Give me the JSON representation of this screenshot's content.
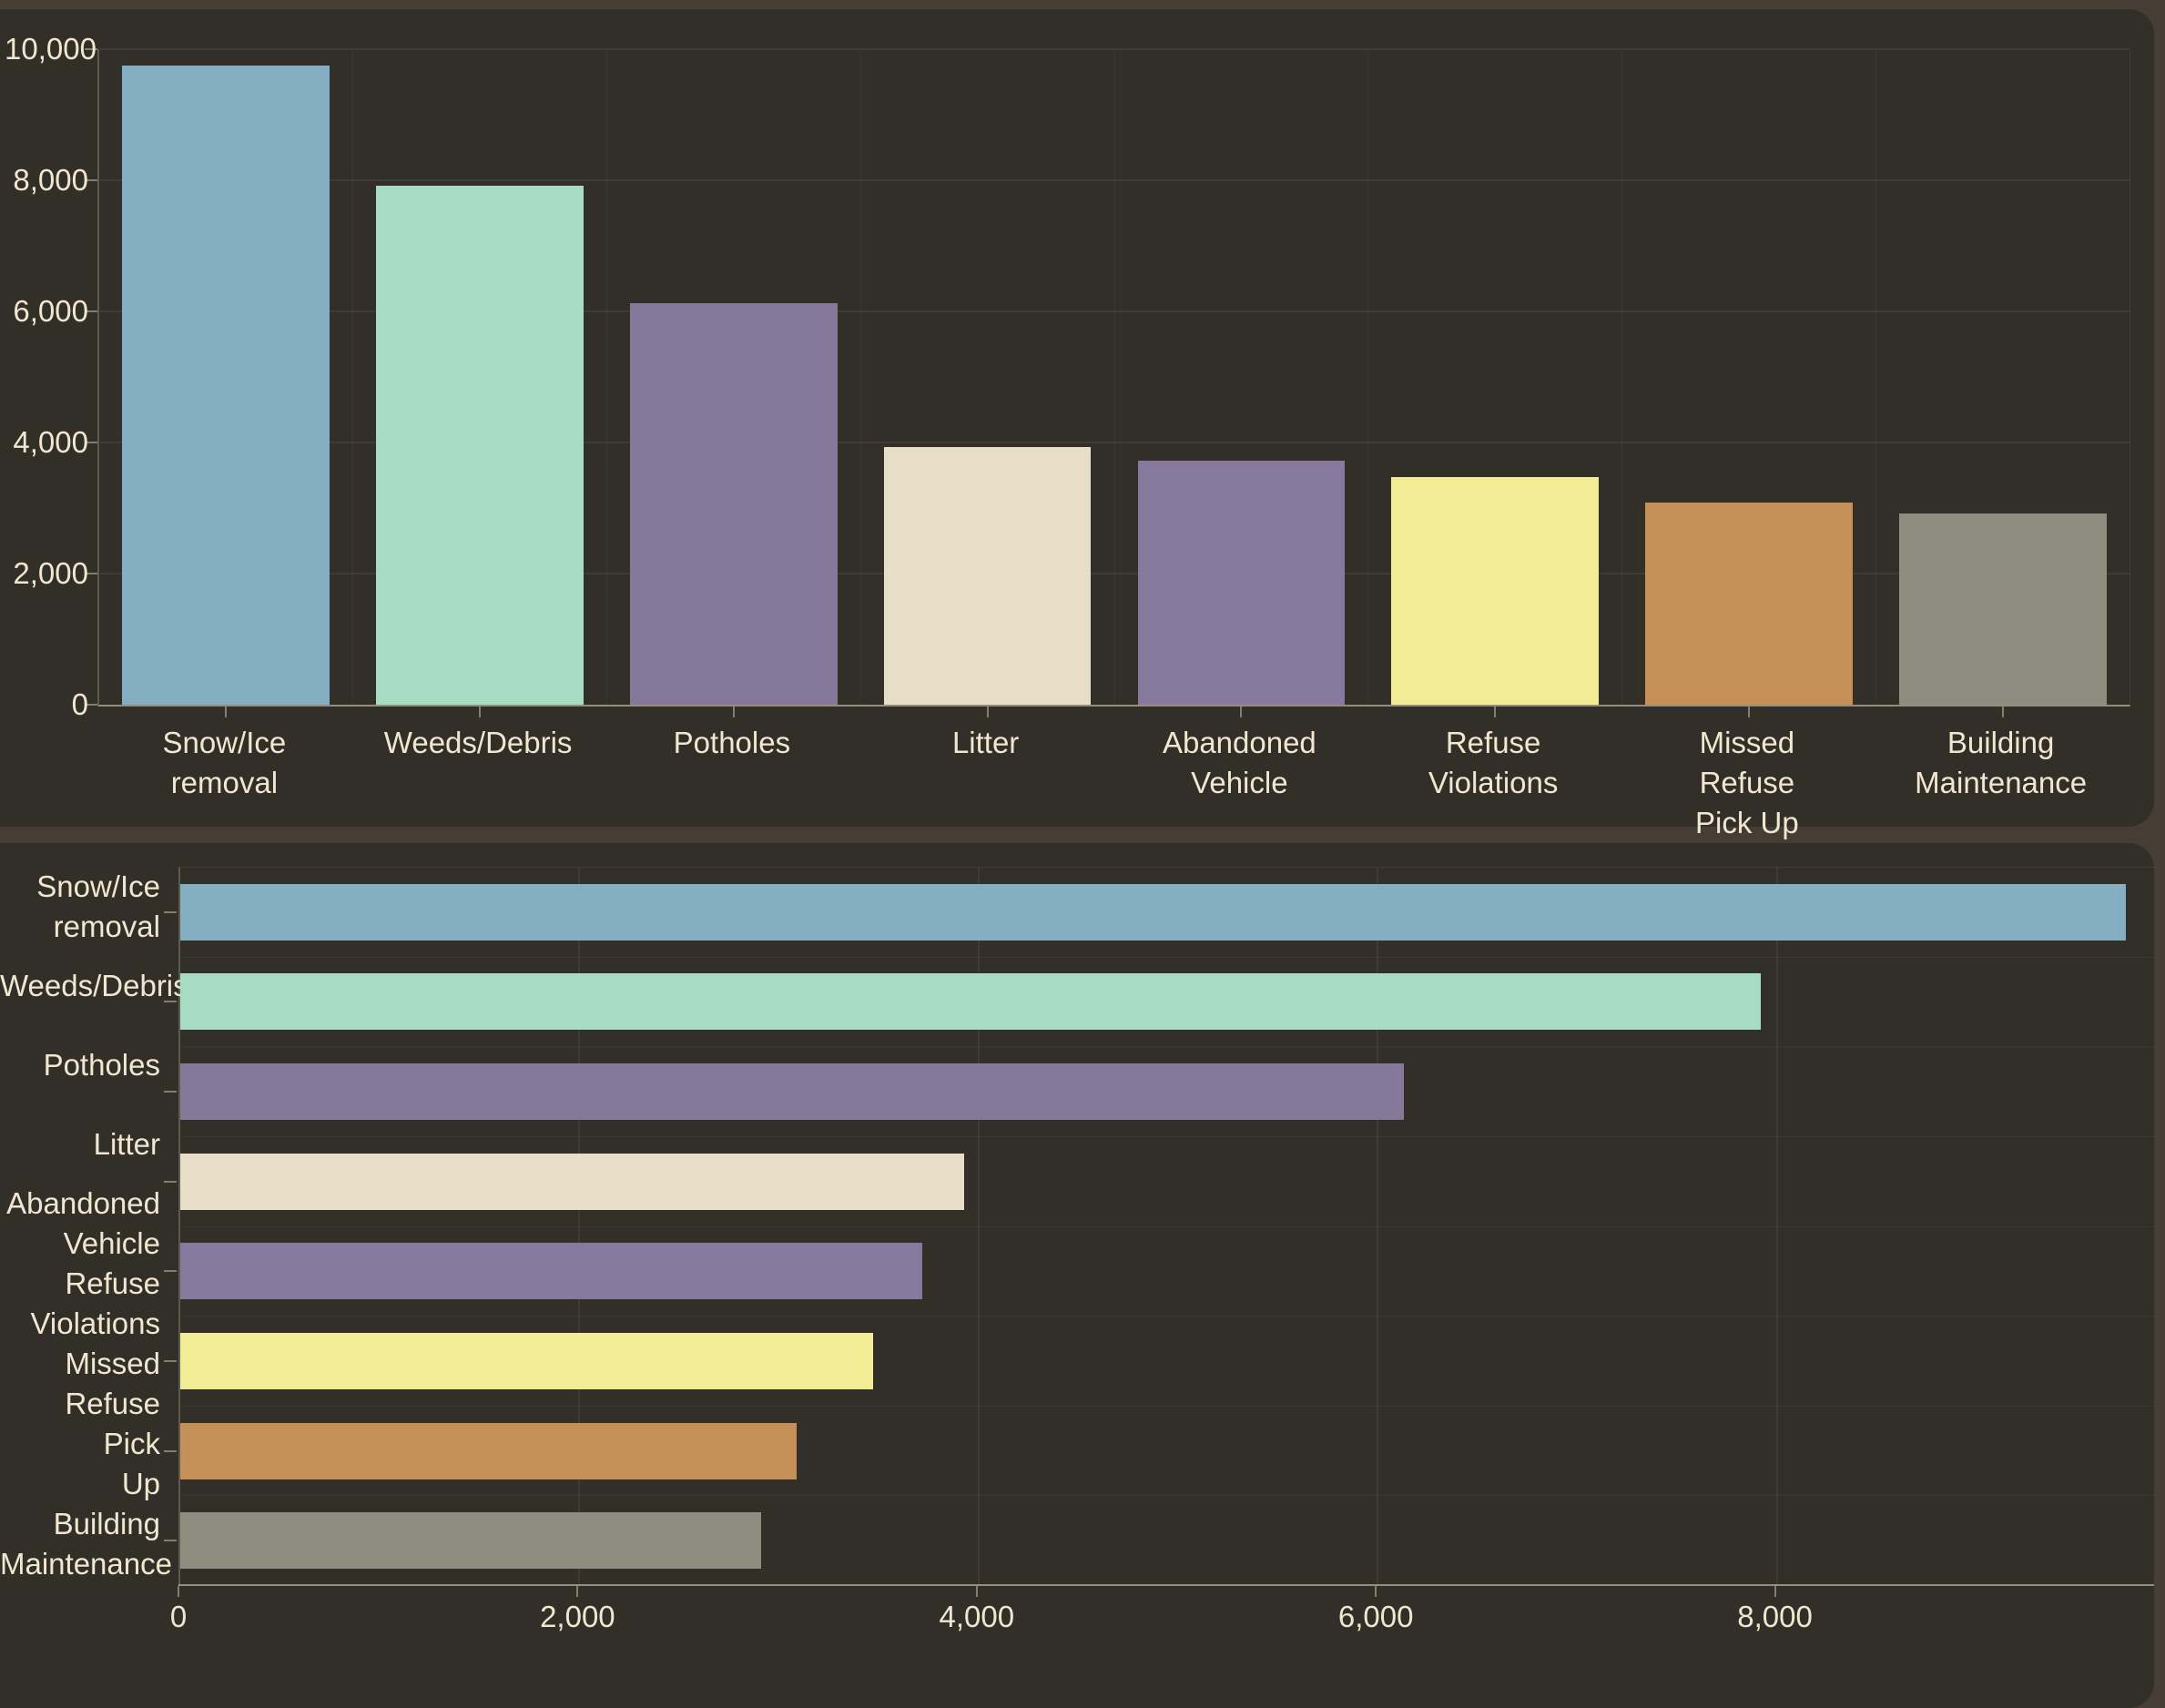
{
  "page": {
    "background": "#463e35",
    "card_background": "#322e28",
    "text_color": "#f1e7d1",
    "gridline_color": "#3d3831",
    "axis_color": "#8a8478"
  },
  "chart_data": [
    {
      "type": "bar",
      "orientation": "vertical",
      "title": "",
      "xlabel": "",
      "ylabel": "",
      "categories": [
        "Snow/Ice removal",
        "Weeds/Debris",
        "Potholes",
        "Litter",
        "Abandoned Vehicle",
        "Refuse Violations",
        "Missed Refuse Pick Up",
        "Building Maintenance"
      ],
      "category_label_lines": [
        [
          "Snow/Ice",
          "removal"
        ],
        [
          "Weeds/Debris"
        ],
        [
          "Potholes"
        ],
        [
          "Litter"
        ],
        [
          "Abandoned",
          "Vehicle"
        ],
        [
          "Refuse",
          "Violations"
        ],
        [
          "Missed",
          "Refuse",
          "Pick Up"
        ],
        [
          "Building",
          "Maintenance"
        ]
      ],
      "values": [
        9750,
        7920,
        6130,
        3930,
        3720,
        3470,
        3090,
        2910
      ],
      "colors": [
        "#84aec2",
        "#a6dcc3",
        "#867898",
        "#e8dec7",
        "#87799e",
        "#f3ec97",
        "#c49057",
        "#8e8e80"
      ],
      "ylim": [
        0,
        10000
      ],
      "yticks": [
        "0",
        "2,000",
        "4,000",
        "6,000",
        "8,000",
        "10,000"
      ],
      "ytick_values": [
        0,
        2000,
        4000,
        6000,
        8000,
        10000
      ],
      "grid": true,
      "legend": false
    },
    {
      "type": "bar",
      "orientation": "horizontal",
      "title": "",
      "xlabel": "",
      "ylabel": "",
      "categories": [
        "Snow/Ice removal",
        "Weeds/Debris",
        "Potholes",
        "Litter",
        "Abandoned Vehicle",
        "Refuse Violations",
        "Missed Refuse Pick Up",
        "Building Maintenance"
      ],
      "category_label_lines": [
        [
          "Snow/Ice",
          "removal"
        ],
        [
          "Weeds/Debris"
        ],
        [
          "Potholes"
        ],
        [
          "Litter"
        ],
        [
          "Abandoned",
          "Vehicle"
        ],
        [
          "Refuse",
          "Violations"
        ],
        [
          "Missed",
          "Refuse Pick",
          "Up"
        ],
        [
          "Building",
          "Maintenance"
        ]
      ],
      "values": [
        9750,
        7920,
        6130,
        3930,
        3720,
        3470,
        3090,
        2910
      ],
      "colors": [
        "#84aec2",
        "#a6dcc3",
        "#867898",
        "#e8dec7",
        "#87799e",
        "#f3ec97",
        "#c49057",
        "#8e8e80"
      ],
      "xlim": [
        0,
        9900
      ],
      "xticks": [
        "0",
        "2,000",
        "4,000",
        "6,000",
        "8,000"
      ],
      "xtick_values": [
        0,
        2000,
        4000,
        6000,
        8000
      ],
      "grid": true,
      "legend": false
    }
  ]
}
